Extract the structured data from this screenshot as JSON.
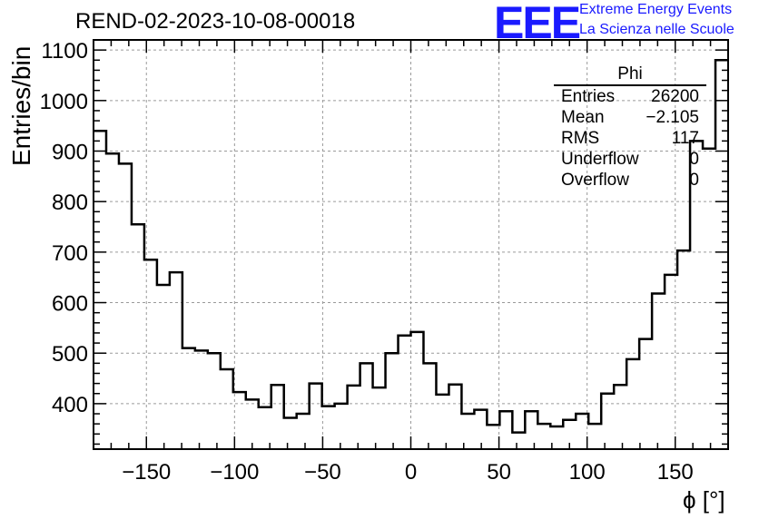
{
  "header": {
    "title": "REND-02-2023-10-08-00018",
    "logo_text": "EEE",
    "logo_line1": "Extreme Energy Events",
    "logo_line2": "La Scienza nelle Scuole",
    "brand_color": "#1a1aff"
  },
  "stats_box": {
    "name": "Phi",
    "rows": [
      {
        "label": "Entries",
        "value": "26200"
      },
      {
        "label": "Mean",
        "value": "−2.105"
      },
      {
        "label": "RMS",
        "value": "117"
      },
      {
        "label": "Underflow",
        "value": "0"
      },
      {
        "label": "Overflow",
        "value": "0"
      }
    ]
  },
  "chart_data": {
    "type": "histogram",
    "title": "REND-02-2023-10-08-00018",
    "xlabel": "ϕ [°]",
    "ylabel": "Entries/bin",
    "xlim": [
      -180,
      180
    ],
    "ylim": [
      310,
      1120
    ],
    "grid": true,
    "bin_width": 7.2,
    "x_ticks": [
      -150,
      -100,
      -50,
      0,
      50,
      100,
      150
    ],
    "x_tick_labels": [
      "−150",
      "−100",
      "−50",
      "0",
      "50",
      "100",
      "150"
    ],
    "y_ticks": [
      400,
      500,
      600,
      700,
      800,
      900,
      1000,
      1100
    ],
    "y_tick_labels": [
      "400",
      "500",
      "600",
      "700",
      "800",
      "900",
      "1000",
      "1100"
    ],
    "values": [
      940,
      895,
      875,
      755,
      685,
      635,
      660,
      510,
      505,
      500,
      468,
      423,
      408,
      393,
      437,
      372,
      380,
      440,
      395,
      400,
      436,
      480,
      432,
      500,
      535,
      542,
      480,
      418,
      438,
      380,
      388,
      358,
      385,
      343,
      385,
      360,
      355,
      368,
      380,
      360,
      420,
      437,
      488,
      528,
      618,
      655,
      703,
      920,
      905,
      1080
    ]
  }
}
